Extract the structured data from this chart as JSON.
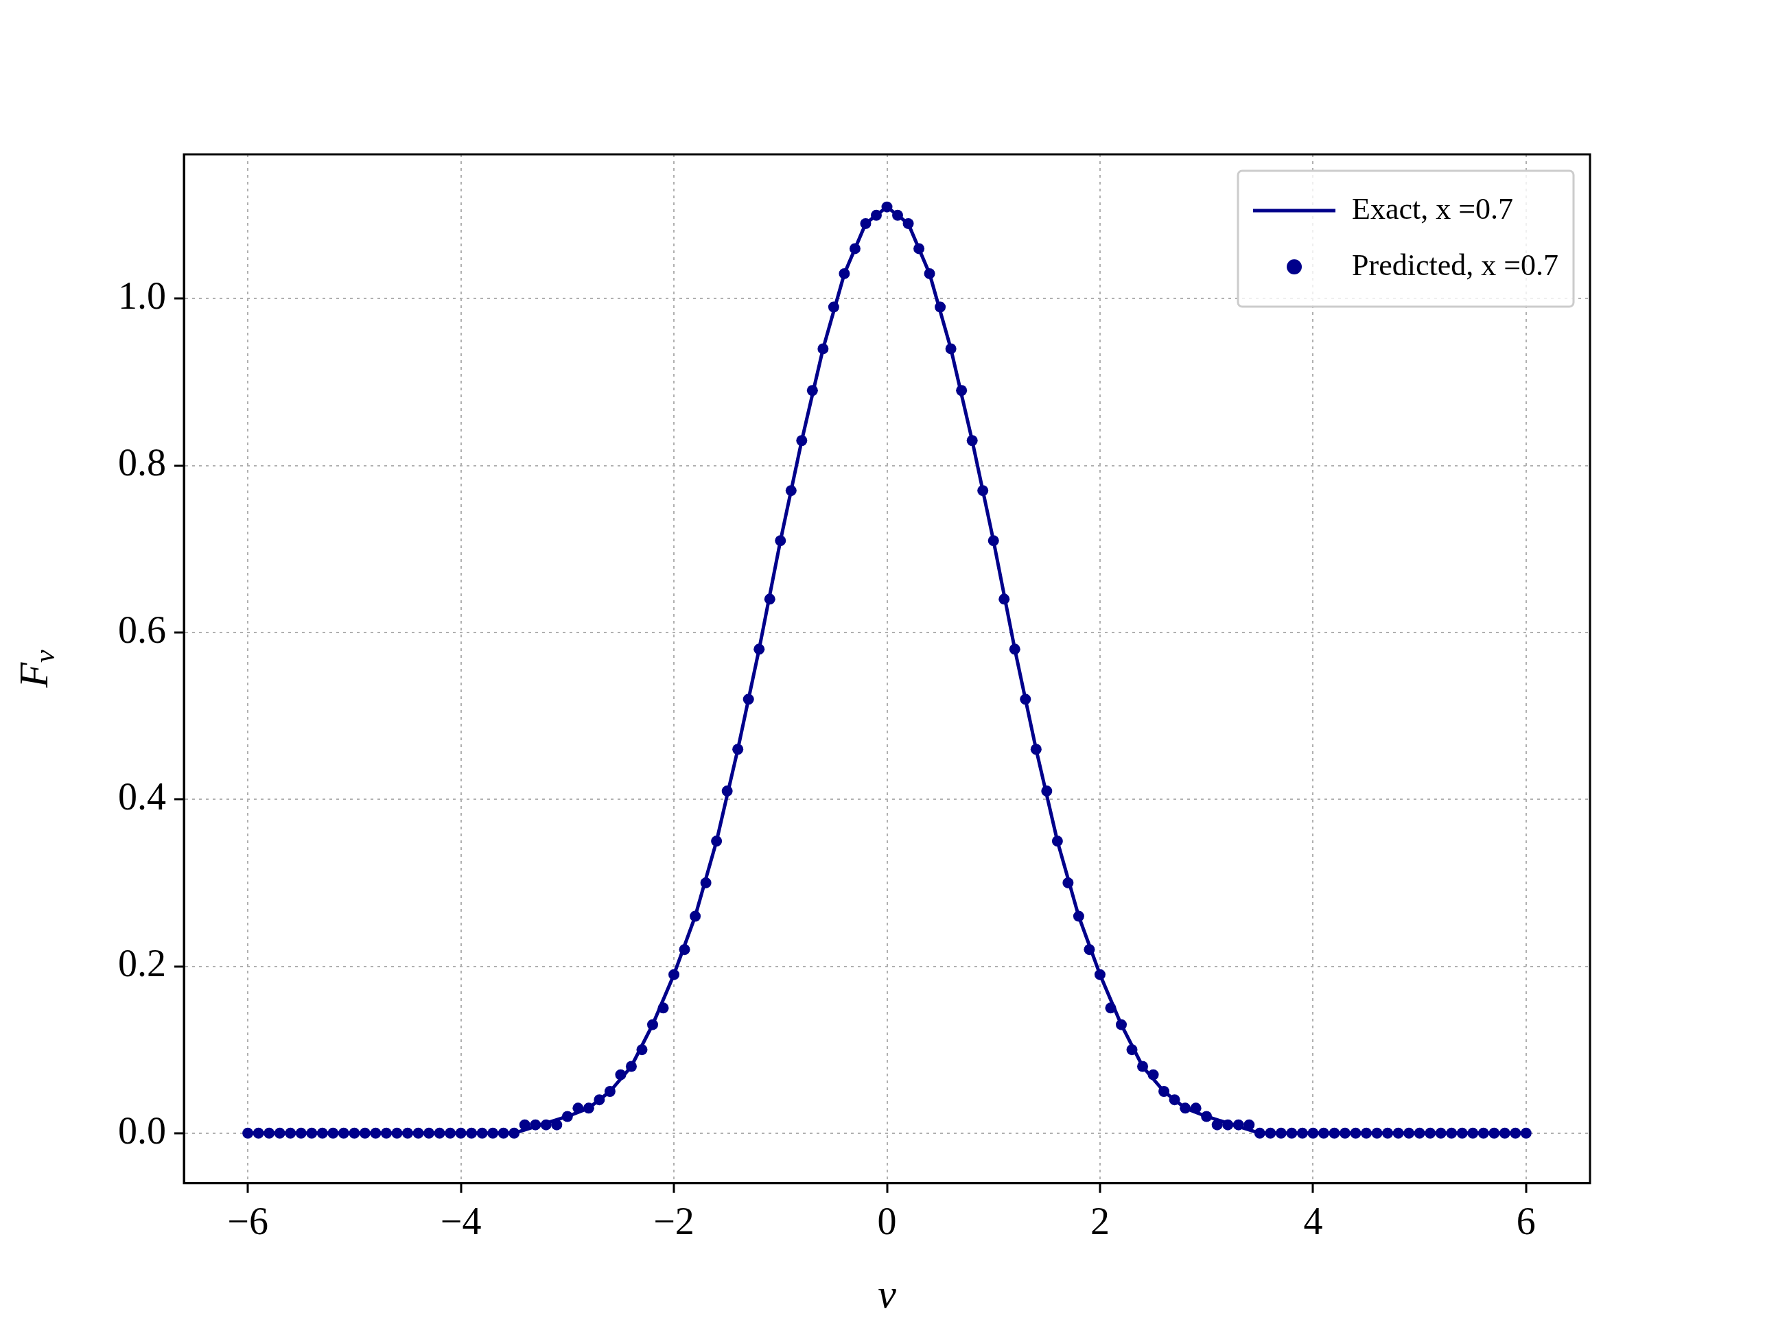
{
  "chart_data": {
    "type": "line",
    "xlabel": "ν",
    "ylabel": "F$_{ν}$",
    "xlim": [
      -6.6,
      6.6
    ],
    "ylim": [
      -0.06,
      1.173
    ],
    "xticks": [
      {
        "value": -6,
        "label": "−6"
      },
      {
        "value": -4,
        "label": "−4"
      },
      {
        "value": -2,
        "label": "−2"
      },
      0,
      2,
      4,
      6
    ],
    "yticks": [
      {
        "value": 0,
        "label": "0.0"
      },
      {
        "value": 0.2,
        "label": "0.2"
      },
      {
        "value": 0.4,
        "label": "0.4"
      },
      {
        "value": 0.6,
        "label": "0.6"
      },
      {
        "value": 0.8,
        "label": "0.8"
      },
      {
        "value": 1,
        "label": "1.0"
      }
    ],
    "grid": true,
    "legend": "top right",
    "series": [
      {
        "name": "Exact, x =0.7",
        "color": "#00008b",
        "line_style": "solid",
        "x": [
          -6,
          -5,
          -4,
          -3.5,
          -3,
          -2.8,
          -2.6,
          -2.4,
          -2.2,
          -2,
          -1.8,
          -1.6,
          -1.4,
          -1.2,
          -1,
          -0.8,
          -0.6,
          -0.4,
          -0.2,
          0,
          0.2,
          0.4,
          0.6,
          0.8,
          1,
          1.2,
          1.4,
          1.6,
          1.8,
          2,
          2.2,
          2.4,
          2.6,
          2.8,
          3,
          3.5,
          4,
          5,
          6
        ],
        "values": [
          0,
          0,
          0,
          0,
          0.02,
          0.03,
          0.05,
          0.08,
          0.13,
          0.19,
          0.26,
          0.35,
          0.46,
          0.58,
          0.71,
          0.83,
          0.94,
          1.03,
          1.09,
          1.11,
          1.09,
          1.03,
          0.94,
          0.83,
          0.71,
          0.58,
          0.46,
          0.35,
          0.26,
          0.19,
          0.13,
          0.08,
          0.05,
          0.03,
          0.02,
          0,
          0,
          0,
          0
        ]
      },
      {
        "name": "Predicted, x =0.7",
        "type": "scatter",
        "color": "#00008b",
        "marker": "circle",
        "x": [
          -6,
          -5.9,
          -5.8,
          -5.7,
          -5.6,
          -5.5,
          -5.4,
          -5.3,
          -5.2,
          -5.1,
          -5,
          -4.9,
          -4.8,
          -4.7,
          -4.6,
          -4.5,
          -4.4,
          -4.3,
          -4.2,
          -4.1,
          -4,
          -3.9,
          -3.8,
          -3.7,
          -3.6,
          -3.5,
          -3.4,
          -3.3,
          -3.2,
          -3.1,
          -3,
          -2.9,
          -2.8,
          -2.7,
          -2.6,
          -2.5,
          -2.4,
          -2.3,
          -2.2,
          -2.1,
          -2,
          -1.9,
          -1.8,
          -1.7,
          -1.6,
          -1.5,
          -1.4,
          -1.3,
          -1.2,
          -1.1,
          -1,
          -0.9,
          -0.8,
          -0.7,
          -0.6,
          -0.5,
          -0.4,
          -0.3,
          -0.2,
          -0.1,
          0,
          0.1,
          0.2,
          0.3,
          0.4,
          0.5,
          0.6,
          0.7,
          0.8,
          0.9,
          1,
          1.1,
          1.2,
          1.3,
          1.4,
          1.5,
          1.6,
          1.7,
          1.8,
          1.9,
          2,
          2.1,
          2.2,
          2.3,
          2.4,
          2.5,
          2.6,
          2.7,
          2.8,
          2.9,
          3,
          3.1,
          3.2,
          3.3,
          3.4,
          3.5,
          3.6,
          3.7,
          3.8,
          3.9,
          4,
          4.1,
          4.2,
          4.3,
          4.4,
          4.5,
          4.6,
          4.7,
          4.8,
          4.9,
          5,
          5.1,
          5.2,
          5.3,
          5.4,
          5.5,
          5.6,
          5.7,
          5.8,
          5.9,
          6
        ],
        "values": [
          0,
          0,
          0,
          0,
          0,
          0,
          0,
          0,
          0,
          0,
          0,
          0,
          0,
          0,
          0,
          0,
          0,
          0,
          0,
          0,
          0,
          0,
          0,
          0,
          0,
          0,
          0.01,
          0.01,
          0.01,
          0.01,
          0.02,
          0.03,
          0.03,
          0.04,
          0.05,
          0.07,
          0.08,
          0.1,
          0.13,
          0.15,
          0.19,
          0.22,
          0.26,
          0.3,
          0.35,
          0.41,
          0.46,
          0.52,
          0.58,
          0.64,
          0.71,
          0.77,
          0.83,
          0.89,
          0.94,
          0.99,
          1.03,
          1.06,
          1.09,
          1.1,
          1.11,
          1.1,
          1.09,
          1.06,
          1.03,
          0.99,
          0.94,
          0.89,
          0.83,
          0.77,
          0.71,
          0.64,
          0.58,
          0.52,
          0.46,
          0.41,
          0.35,
          0.3,
          0.26,
          0.22,
          0.19,
          0.15,
          0.13,
          0.1,
          0.08,
          0.07,
          0.05,
          0.04,
          0.03,
          0.03,
          0.02,
          0.01,
          0.01,
          0.01,
          0.01,
          0,
          0,
          0,
          0,
          0,
          0,
          0,
          0,
          0,
          0,
          0,
          0,
          0,
          0,
          0,
          0,
          0,
          0,
          0,
          0,
          0,
          0,
          0,
          0,
          0,
          0
        ]
      }
    ]
  }
}
